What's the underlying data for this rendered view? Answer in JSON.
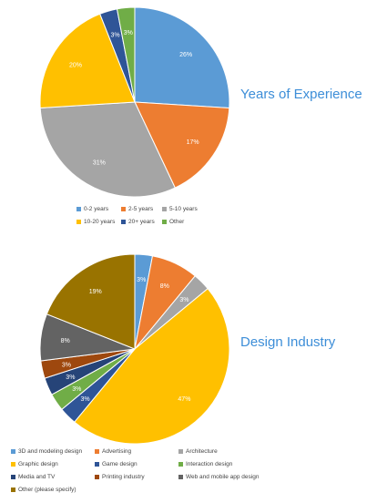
{
  "colors": {
    "blue": "#5b9bd5",
    "orange": "#ed7d31",
    "gray": "#a5a5a5",
    "yellow": "#ffc000",
    "navy": "#2f5597",
    "green": "#70ad47",
    "darkgray": "#636363",
    "darkorange": "#9e480e",
    "brown": "#997300"
  },
  "chart_data": [
    {
      "type": "pie",
      "title": "Years of Experience",
      "legend_position": "bottom",
      "slices": [
        {
          "label": "0-2 years",
          "value": 26,
          "display": "26%",
          "color": "#5b9bd5"
        },
        {
          "label": "2-5 years",
          "value": 17,
          "display": "17%",
          "color": "#ed7d31"
        },
        {
          "label": "5-10 years",
          "value": 31,
          "display": "31%",
          "color": "#a5a5a5"
        },
        {
          "label": "10-20 years",
          "value": 20,
          "display": "20%",
          "color": "#ffc000"
        },
        {
          "label": "20+ years",
          "value": 3,
          "display": "3%",
          "color": "#2f5597"
        },
        {
          "label": "Other",
          "value": 3,
          "display": "3%",
          "color": "#70ad47"
        }
      ]
    },
    {
      "type": "pie",
      "title": "Design Industry",
      "legend_position": "bottom",
      "slices": [
        {
          "label": "3D and modeling design",
          "value": 3,
          "display": "3%",
          "color": "#5b9bd5"
        },
        {
          "label": "Advertising",
          "value": 8,
          "display": "8%",
          "color": "#ed7d31"
        },
        {
          "label": "Architecture",
          "value": 3,
          "display": "3%",
          "color": "#a5a5a5"
        },
        {
          "label": "Graphic design",
          "value": 47,
          "display": "47%",
          "color": "#ffc000"
        },
        {
          "label": "Game design",
          "value": 3,
          "display": "3%",
          "color": "#2f5597"
        },
        {
          "label": "Interaction design",
          "value": 3,
          "display": "3%",
          "color": "#70ad47"
        },
        {
          "label": "Media and TV",
          "value": 3,
          "display": "3%",
          "color": "#264478"
        },
        {
          "label": "Printing industry",
          "value": 3,
          "display": "3%",
          "color": "#9e480e"
        },
        {
          "label": "Web and mobile app design",
          "value": 8,
          "display": "8%",
          "color": "#636363"
        },
        {
          "label": "Other (please specify)",
          "value": 19,
          "display": "19%",
          "color": "#997300"
        }
      ]
    }
  ]
}
